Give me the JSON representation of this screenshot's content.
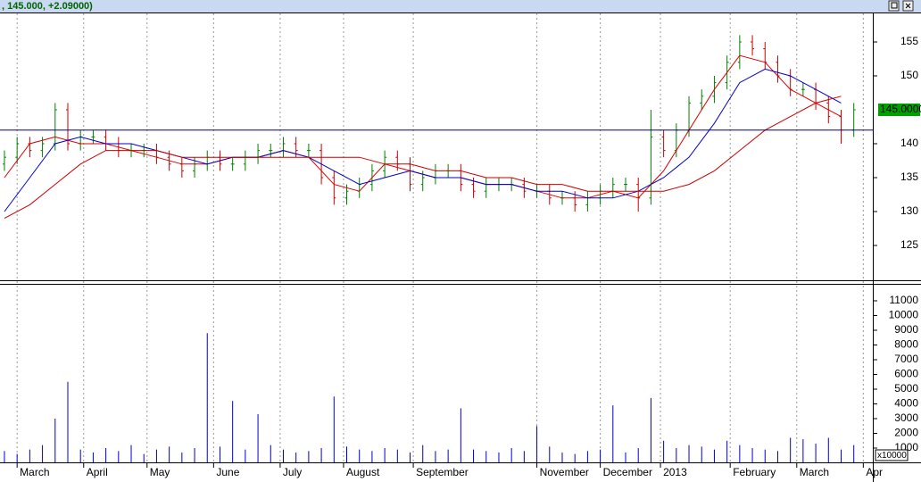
{
  "header": {
    "title": ", 145.000, +2.09000)"
  },
  "chart_data": [
    {
      "type": "ohlc",
      "x": [
        0,
        4,
        8,
        12,
        16,
        20,
        24,
        28,
        32,
        36,
        40,
        44,
        48,
        52,
        56,
        60,
        64,
        68,
        72,
        76,
        80,
        84,
        88,
        92,
        96,
        100,
        104,
        108,
        112,
        116,
        120,
        124,
        128,
        132,
        136,
        140,
        144,
        148,
        152,
        156,
        160,
        164,
        168,
        172,
        176,
        180,
        184,
        188,
        192,
        196,
        200,
        204,
        208,
        212,
        216,
        220,
        224,
        228,
        232,
        236,
        240,
        244,
        248,
        252,
        256,
        260,
        264,
        268
      ],
      "open": [
        137,
        138,
        140,
        139,
        140,
        145,
        140,
        141,
        141,
        140,
        139,
        139,
        139,
        138,
        137,
        136,
        137,
        138,
        137,
        137,
        138,
        139,
        139,
        140,
        139,
        139,
        135,
        132,
        133,
        134,
        136,
        138,
        137,
        134,
        135,
        136,
        136,
        134,
        133,
        134,
        134,
        134,
        133,
        133,
        132,
        132,
        131,
        132,
        133,
        134,
        134,
        132,
        141,
        139,
        142,
        146,
        147,
        149,
        152,
        155,
        154,
        152,
        150,
        148,
        148,
        146,
        144,
        142
      ],
      "high": [
        139,
        141,
        141,
        141,
        146,
        146,
        142,
        142,
        142,
        141,
        140,
        140,
        140,
        139,
        138,
        138,
        139,
        139,
        138,
        139,
        140,
        140,
        141,
        141,
        140,
        140,
        136,
        134,
        135,
        137,
        139,
        139,
        138,
        136,
        137,
        137,
        137,
        135,
        135,
        135,
        135,
        135,
        134,
        134,
        133,
        133,
        133,
        134,
        135,
        135,
        135,
        145,
        142,
        143,
        147,
        148,
        150,
        153,
        156,
        156,
        155,
        153,
        151,
        149,
        149,
        147,
        145,
        146
      ],
      "low": [
        136,
        137,
        138,
        138,
        139,
        139,
        139,
        140,
        139,
        138,
        138,
        138,
        137,
        136,
        135,
        135,
        136,
        136,
        136,
        136,
        137,
        138,
        138,
        138,
        138,
        134,
        131,
        131,
        132,
        133,
        135,
        136,
        133,
        133,
        134,
        135,
        133,
        132,
        132,
        133,
        133,
        132,
        132,
        131,
        131,
        130,
        130,
        131,
        132,
        133,
        130,
        131,
        138,
        138,
        141,
        145,
        146,
        148,
        151,
        153,
        151,
        149,
        147,
        147,
        145,
        143,
        140,
        141
      ],
      "close": [
        138,
        140,
        139,
        140,
        145,
        140,
        141,
        141,
        140,
        139,
        139,
        139,
        138,
        137,
        136,
        137,
        138,
        137,
        137,
        138,
        139,
        139,
        140,
        139,
        139,
        135,
        132,
        133,
        134,
        136,
        138,
        137,
        134,
        135,
        136,
        136,
        134,
        133,
        134,
        134,
        134,
        133,
        133,
        132,
        132,
        131,
        132,
        133,
        134,
        134,
        132,
        141,
        139,
        142,
        146,
        147,
        149,
        152,
        155,
        154,
        152,
        150,
        148,
        148,
        146,
        144,
        142,
        145
      ],
      "up_color": "#008000",
      "down_color": "#cc0000",
      "series": [
        {
          "color": "#dd0000",
          "x": [
            0,
            8,
            16,
            24,
            32,
            40,
            48,
            56,
            64,
            72,
            80,
            88,
            96,
            104,
            112,
            120,
            128,
            136,
            144,
            152,
            160,
            168,
            176,
            184,
            192,
            200,
            208,
            216,
            224,
            232,
            240,
            248,
            256,
            264
          ],
          "values": [
            135,
            140,
            141,
            140,
            140,
            139,
            138,
            137,
            137,
            138,
            138,
            139,
            138,
            134,
            133,
            137,
            136,
            135,
            135,
            134,
            134,
            133,
            132,
            132,
            133,
            132,
            136,
            142,
            148,
            153,
            152,
            148,
            146,
            144
          ]
        },
        {
          "color": "#0000cc",
          "x": [
            0,
            8,
            16,
            24,
            32,
            40,
            48,
            56,
            64,
            72,
            80,
            88,
            96,
            104,
            112,
            120,
            128,
            136,
            144,
            152,
            160,
            168,
            176,
            184,
            192,
            200,
            208,
            216,
            224,
            232,
            240,
            248,
            256,
            264
          ],
          "values": [
            130,
            135,
            140,
            141,
            140,
            140,
            139,
            138,
            137,
            138,
            138,
            139,
            138,
            136,
            134,
            135,
            136,
            135,
            135,
            134,
            134,
            133,
            133,
            132,
            132,
            133,
            135,
            138,
            143,
            149,
            151,
            150,
            148,
            146
          ]
        },
        {
          "color": "#cc0000",
          "x": [
            0,
            8,
            16,
            24,
            32,
            40,
            48,
            56,
            64,
            72,
            80,
            88,
            96,
            104,
            112,
            120,
            128,
            136,
            144,
            152,
            160,
            168,
            176,
            184,
            192,
            200,
            208,
            216,
            224,
            232,
            240,
            248,
            256,
            264
          ],
          "values": [
            129,
            131,
            134,
            137,
            139,
            139,
            139,
            138,
            138,
            138,
            138,
            138,
            138,
            138,
            138,
            137,
            137,
            136,
            136,
            135,
            135,
            134,
            134,
            133,
            133,
            133,
            133,
            134,
            136,
            139,
            142,
            144,
            146,
            147
          ]
        }
      ],
      "hline": 142,
      "last_price": 145,
      "last_price_label": "145.0000",
      "xlim": [
        -1.4,
        274
      ],
      "ylim": [
        120,
        159
      ],
      "yticks": [
        125,
        130,
        135,
        140,
        150,
        155
      ],
      "xticks": [
        {
          "value": 4,
          "label": "March"
        },
        {
          "value": 25,
          "label": "April"
        },
        {
          "value": 45,
          "label": "May"
        },
        {
          "value": 66,
          "label": "June"
        },
        {
          "value": 87,
          "label": "July"
        },
        {
          "value": 107,
          "label": "August"
        },
        {
          "value": 129,
          "label": "September"
        },
        {
          "value": 168,
          "label": "November"
        },
        {
          "value": 188,
          "label": "December"
        },
        {
          "value": 207,
          "label": "2013"
        },
        {
          "value": 229,
          "label": "February"
        },
        {
          "value": 250,
          "label": "March"
        },
        {
          "value": 271,
          "label": "Apr"
        }
      ]
    },
    {
      "type": "bar",
      "color": "#0000cc",
      "x": [
        0,
        4,
        8,
        12,
        16,
        20,
        24,
        28,
        32,
        36,
        40,
        44,
        48,
        52,
        56,
        60,
        64,
        68,
        72,
        76,
        80,
        84,
        88,
        92,
        96,
        100,
        104,
        108,
        112,
        116,
        120,
        124,
        128,
        132,
        136,
        140,
        144,
        148,
        152,
        156,
        160,
        164,
        168,
        172,
        176,
        180,
        184,
        188,
        192,
        196,
        200,
        204,
        208,
        212,
        216,
        220,
        224,
        228,
        232,
        236,
        240,
        244,
        248,
        252,
        256,
        260,
        264,
        268
      ],
      "values": [
        800,
        600,
        900,
        1200,
        3000,
        5500,
        900,
        700,
        1000,
        800,
        1200,
        600,
        900,
        1100,
        700,
        1000,
        8800,
        1100,
        4200,
        900,
        3300,
        1200,
        900,
        700,
        800,
        1000,
        4500,
        1100,
        900,
        800,
        1000,
        900,
        700,
        1200,
        800,
        900,
        3700,
        900,
        800,
        700,
        1000,
        800,
        2500,
        1100,
        700,
        600,
        800,
        900,
        3900,
        700,
        1000,
        4400,
        1500,
        1000,
        1200,
        1100,
        900,
        1500,
        1200,
        1000,
        900,
        800,
        1700,
        1600,
        1300,
        1700,
        900,
        1200
      ],
      "xlim": [
        -1.4,
        274
      ],
      "ylim": [
        0,
        11800
      ],
      "yticks": [
        1000,
        2000,
        3000,
        4000,
        5000,
        6000,
        7000,
        8000,
        9000,
        10000,
        11000
      ],
      "unit_label": "x10000"
    }
  ]
}
